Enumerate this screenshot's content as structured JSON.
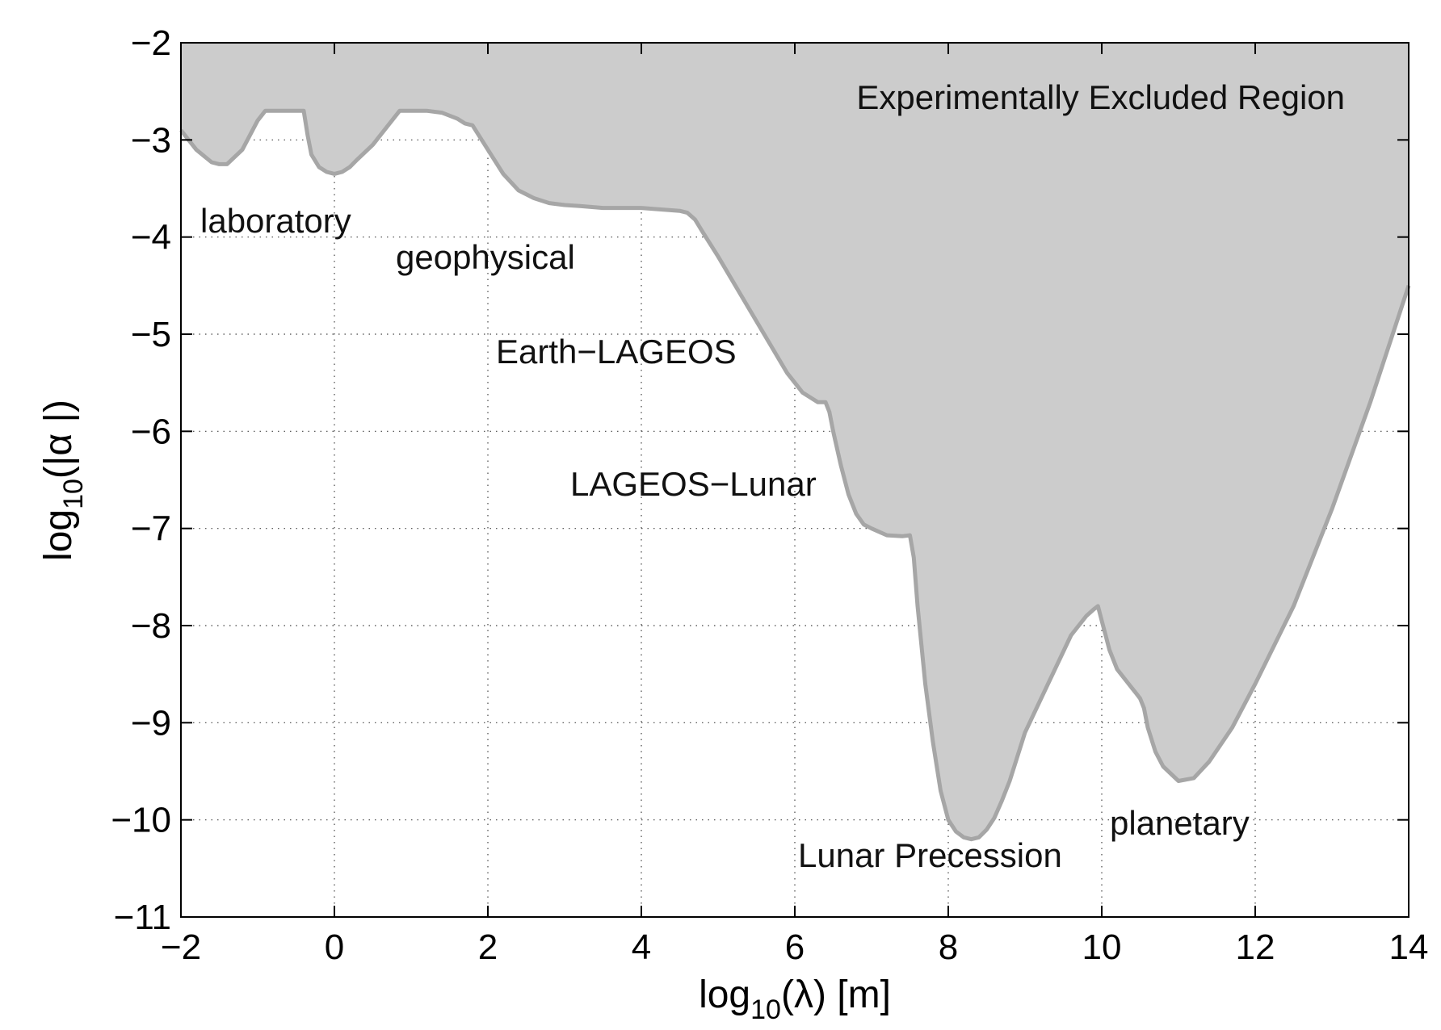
{
  "chart_data": {
    "type": "area",
    "title": "",
    "xlabel": {
      "base": "log",
      "sub": "10",
      "rest": "(λ) [m]"
    },
    "ylabel": {
      "base": "log",
      "sub": "10",
      "rest": "(|α |)"
    },
    "xlim": [
      -2,
      14
    ],
    "ylim": [
      -11,
      -2
    ],
    "x_ticks": [
      -2,
      0,
      2,
      4,
      6,
      8,
      10,
      12,
      14
    ],
    "y_ticks": [
      -11,
      -10,
      -9,
      -8,
      -7,
      -6,
      -5,
      -4,
      -3,
      -2
    ],
    "x_tick_labels": [
      "−2",
      "0",
      "2",
      "4",
      "6",
      "8",
      "10",
      "12",
      "14"
    ],
    "y_tick_labels": [
      "−11",
      "−10",
      "−9",
      "−8",
      "−7",
      "−6",
      "−5",
      "−4",
      "−3",
      "−2"
    ],
    "grid": true,
    "fill_color": "#cccccc",
    "line_color": "#a6a6a6",
    "series": [
      {
        "x": [
          -2,
          -1.8,
          -1.6,
          -1.5,
          -1.4,
          -1.2,
          -1.0,
          -0.9,
          -0.8,
          -0.6,
          -0.4,
          -0.35,
          -0.3,
          -0.2,
          -0.1,
          0,
          0.1,
          0.2,
          0.3,
          0.5,
          0.7,
          0.8,
          0.85,
          0.9,
          1.0,
          1.2,
          1.4,
          1.6,
          1.7,
          1.8,
          2.0,
          2.2,
          2.4,
          2.6,
          2.8,
          3.0,
          3.2,
          3.5,
          4.0,
          4.5,
          4.6,
          4.7,
          4.8,
          5.0,
          5.3,
          5.6,
          5.9,
          6.1,
          6.3,
          6.4,
          6.45,
          6.5,
          6.6,
          6.7,
          6.8,
          6.9,
          7.0,
          7.2,
          7.4,
          7.5,
          7.55,
          7.6,
          7.7,
          7.8,
          7.9,
          8.0,
          8.1,
          8.2,
          8.3,
          8.4,
          8.5,
          8.6,
          8.7,
          8.8,
          9.0,
          9.3,
          9.6,
          9.8,
          9.9,
          9.95,
          10.0,
          10.05,
          10.1,
          10.2,
          10.4,
          10.45,
          10.5,
          10.55,
          10.6,
          10.7,
          10.8,
          11.0,
          11.2,
          11.4,
          11.7,
          12.0,
          12.5,
          13.0,
          13.5,
          14.0
        ],
        "y": [
          -2.9,
          -3.1,
          -3.23,
          -3.25,
          -3.25,
          -3.1,
          -2.8,
          -2.7,
          -2.7,
          -2.7,
          -2.7,
          -2.95,
          -3.15,
          -3.28,
          -3.33,
          -3.35,
          -3.33,
          -3.28,
          -3.2,
          -3.05,
          -2.85,
          -2.75,
          -2.7,
          -2.7,
          -2.7,
          -2.7,
          -2.72,
          -2.78,
          -2.83,
          -2.85,
          -3.1,
          -3.35,
          -3.52,
          -3.6,
          -3.65,
          -3.67,
          -3.68,
          -3.7,
          -3.7,
          -3.73,
          -3.75,
          -3.82,
          -3.95,
          -4.2,
          -4.6,
          -5.0,
          -5.4,
          -5.6,
          -5.7,
          -5.7,
          -5.8,
          -6.0,
          -6.35,
          -6.65,
          -6.85,
          -6.96,
          -7.0,
          -7.07,
          -7.08,
          -7.07,
          -7.3,
          -7.8,
          -8.6,
          -9.2,
          -9.7,
          -10.0,
          -10.12,
          -10.18,
          -10.2,
          -10.18,
          -10.1,
          -9.98,
          -9.8,
          -9.6,
          -9.1,
          -8.6,
          -8.1,
          -7.9,
          -7.83,
          -7.8,
          -7.95,
          -8.1,
          -8.25,
          -8.45,
          -8.65,
          -8.7,
          -8.75,
          -8.85,
          -9.05,
          -9.3,
          -9.45,
          -9.6,
          -9.57,
          -9.4,
          -9.05,
          -8.6,
          -7.8,
          -6.8,
          -5.7,
          -4.5
        ]
      }
    ],
    "annotations": {
      "excluded_region": "Experimentally Excluded Region",
      "laboratory": "laboratory",
      "geophysical": "geophysical",
      "earth_lageos": "Earth−LAGEOS",
      "lageos_lunar": "LAGEOS−Lunar",
      "lunar_precession": "Lunar Precession",
      "planetary": "planetary"
    }
  }
}
